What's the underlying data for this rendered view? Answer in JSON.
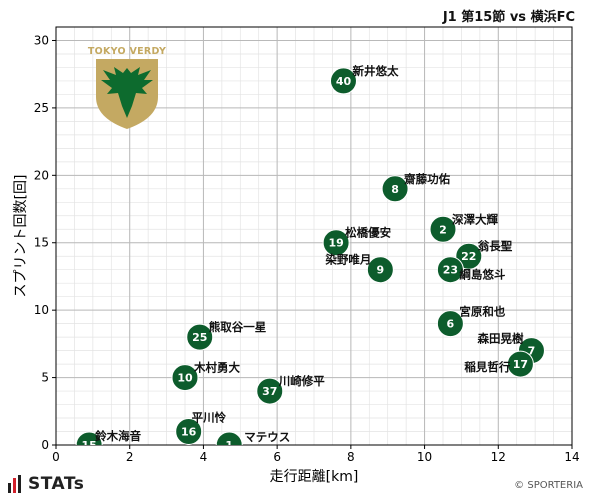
{
  "header": {
    "title": "J1 第15節 vs 横浜FC"
  },
  "brand": {
    "name": "STATs"
  },
  "copyright": "© SPORTERIA",
  "logo": {
    "text": "TOKYO VERDY",
    "color_gold": "#c4a962",
    "color_green": "#0d6b2e"
  },
  "chart_data": {
    "type": "scatter",
    "xlabel": "走行距離[km]",
    "ylabel": "スプリント回数[回]",
    "xlim": [
      0,
      14
    ],
    "ylim": [
      0,
      31
    ],
    "xticks": [
      0,
      2,
      4,
      6,
      8,
      10,
      12,
      14
    ],
    "yticks": [
      0,
      5,
      10,
      15,
      20,
      25,
      30
    ],
    "grid": true,
    "marker_color": "#0d5c2c",
    "points": [
      {
        "number": "40",
        "name": "新井悠太",
        "x": 7.8,
        "y": 27
      },
      {
        "number": "8",
        "name": "齋藤功佑",
        "x": 9.2,
        "y": 19
      },
      {
        "number": "2",
        "name": "深澤大輝",
        "x": 10.5,
        "y": 16
      },
      {
        "number": "19",
        "name": "松橋優安",
        "x": 7.6,
        "y": 15
      },
      {
        "number": "22",
        "name": "翁長聖",
        "x": 11.2,
        "y": 14
      },
      {
        "number": "9",
        "name": "染野唯月",
        "x": 8.8,
        "y": 13
      },
      {
        "number": "23",
        "name": "綱島悠斗",
        "x": 10.7,
        "y": 13
      },
      {
        "number": "6",
        "name": "宮原和也",
        "x": 10.7,
        "y": 9
      },
      {
        "number": "7",
        "name": "森田晃樹",
        "x": 12.9,
        "y": 7
      },
      {
        "number": "17",
        "name": "稲見哲行",
        "x": 12.6,
        "y": 6
      },
      {
        "number": "25",
        "name": "熊取谷一星",
        "x": 3.9,
        "y": 8
      },
      {
        "number": "10",
        "name": "木村勇大",
        "x": 3.5,
        "y": 5
      },
      {
        "number": "37",
        "name": "川崎修平",
        "x": 5.8,
        "y": 4
      },
      {
        "number": "16",
        "name": "平川怜",
        "x": 3.6,
        "y": 1
      },
      {
        "number": "15",
        "name": "鈴木海音",
        "x": 0.9,
        "y": 0
      },
      {
        "number": "1",
        "name": "マテウス",
        "x": 4.7,
        "y": 0
      }
    ]
  }
}
